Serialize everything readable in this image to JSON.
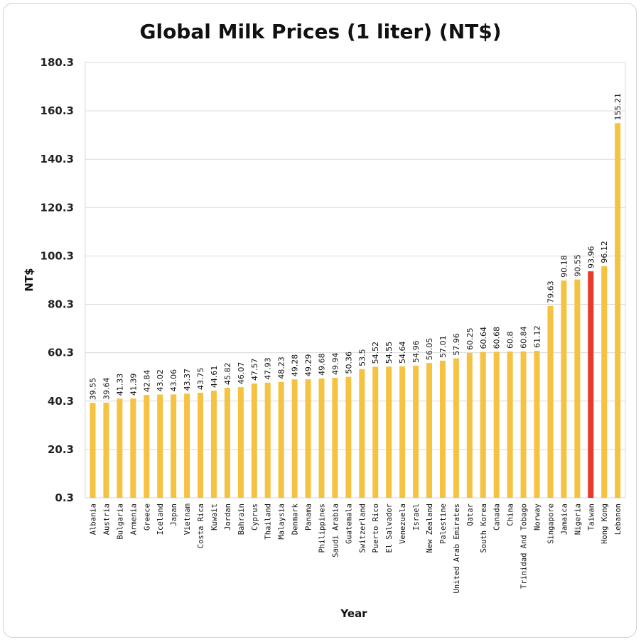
{
  "chart_data": {
    "type": "bar",
    "title": "Global Milk Prices (1 liter) (NT$)",
    "xlabel": "Year",
    "ylabel": "NT$",
    "ylim": [
      0.3,
      180.3
    ],
    "yticks": [
      "0.3",
      "20.3",
      "40.3",
      "60.3",
      "80.3",
      "100.3",
      "120.3",
      "140.3",
      "160.3",
      "180.3"
    ],
    "grid": true,
    "default_color": "#F5C242",
    "highlight_color": "#E8392B",
    "highlight_category": "Taiwan",
    "categories": [
      "Albania",
      "Austria",
      "Bulgaria",
      "Armenia",
      "Greece",
      "Iceland",
      "Japan",
      "Vietnam",
      "Costa Rica",
      "Kuwait",
      "Jordan",
      "Bahrain",
      "Cyprus",
      "Thailand",
      "Malaysia",
      "Denmark",
      "Panama",
      "Philippines",
      "Saudi Arabia",
      "Guatemala",
      "Switzerland",
      "Puerto Rico",
      "El Salvador",
      "Venezuela",
      "Israel",
      "New Zealand",
      "Palestine",
      "United Arab Emirates",
      "Qatar",
      "South Korea",
      "Canada",
      "China",
      "Trinidad And Tobago",
      "Norway",
      "Singapore",
      "Jamaica",
      "Nigeria",
      "Taiwan",
      "Hong Kong",
      "Lebanon"
    ],
    "values": [
      39.55,
      39.64,
      41.33,
      41.39,
      42.84,
      43.02,
      43.06,
      43.37,
      43.75,
      44.61,
      45.82,
      46.07,
      47.57,
      47.93,
      48.23,
      49.28,
      49.29,
      49.68,
      49.94,
      50.36,
      53.5,
      54.52,
      54.55,
      54.64,
      54.96,
      56.05,
      57.01,
      57.96,
      60.25,
      60.64,
      60.68,
      60.8,
      60.84,
      61.12,
      79.63,
      90.18,
      90.55,
      93.96,
      96.12,
      155.21
    ],
    "labels": [
      "39.55",
      "39.64",
      "41.33",
      "41.39",
      "42.84",
      "43.02",
      "43.06",
      "43.37",
      "43.75",
      "44.61",
      "45.82",
      "46.07",
      "47.57",
      "47.93",
      "48.23",
      "49.28",
      "49.29",
      "49.68",
      "49.94",
      "50.36",
      "53.5",
      "54.52",
      "54.55",
      "54.64",
      "54.96",
      "56.05",
      "57.01",
      "57.96",
      "60.25",
      "60.64",
      "60.68",
      "60.8",
      "60.84",
      "61.12",
      "79.63",
      "90.18",
      "90.55",
      "93.96",
      "96.12",
      "155.21"
    ]
  }
}
